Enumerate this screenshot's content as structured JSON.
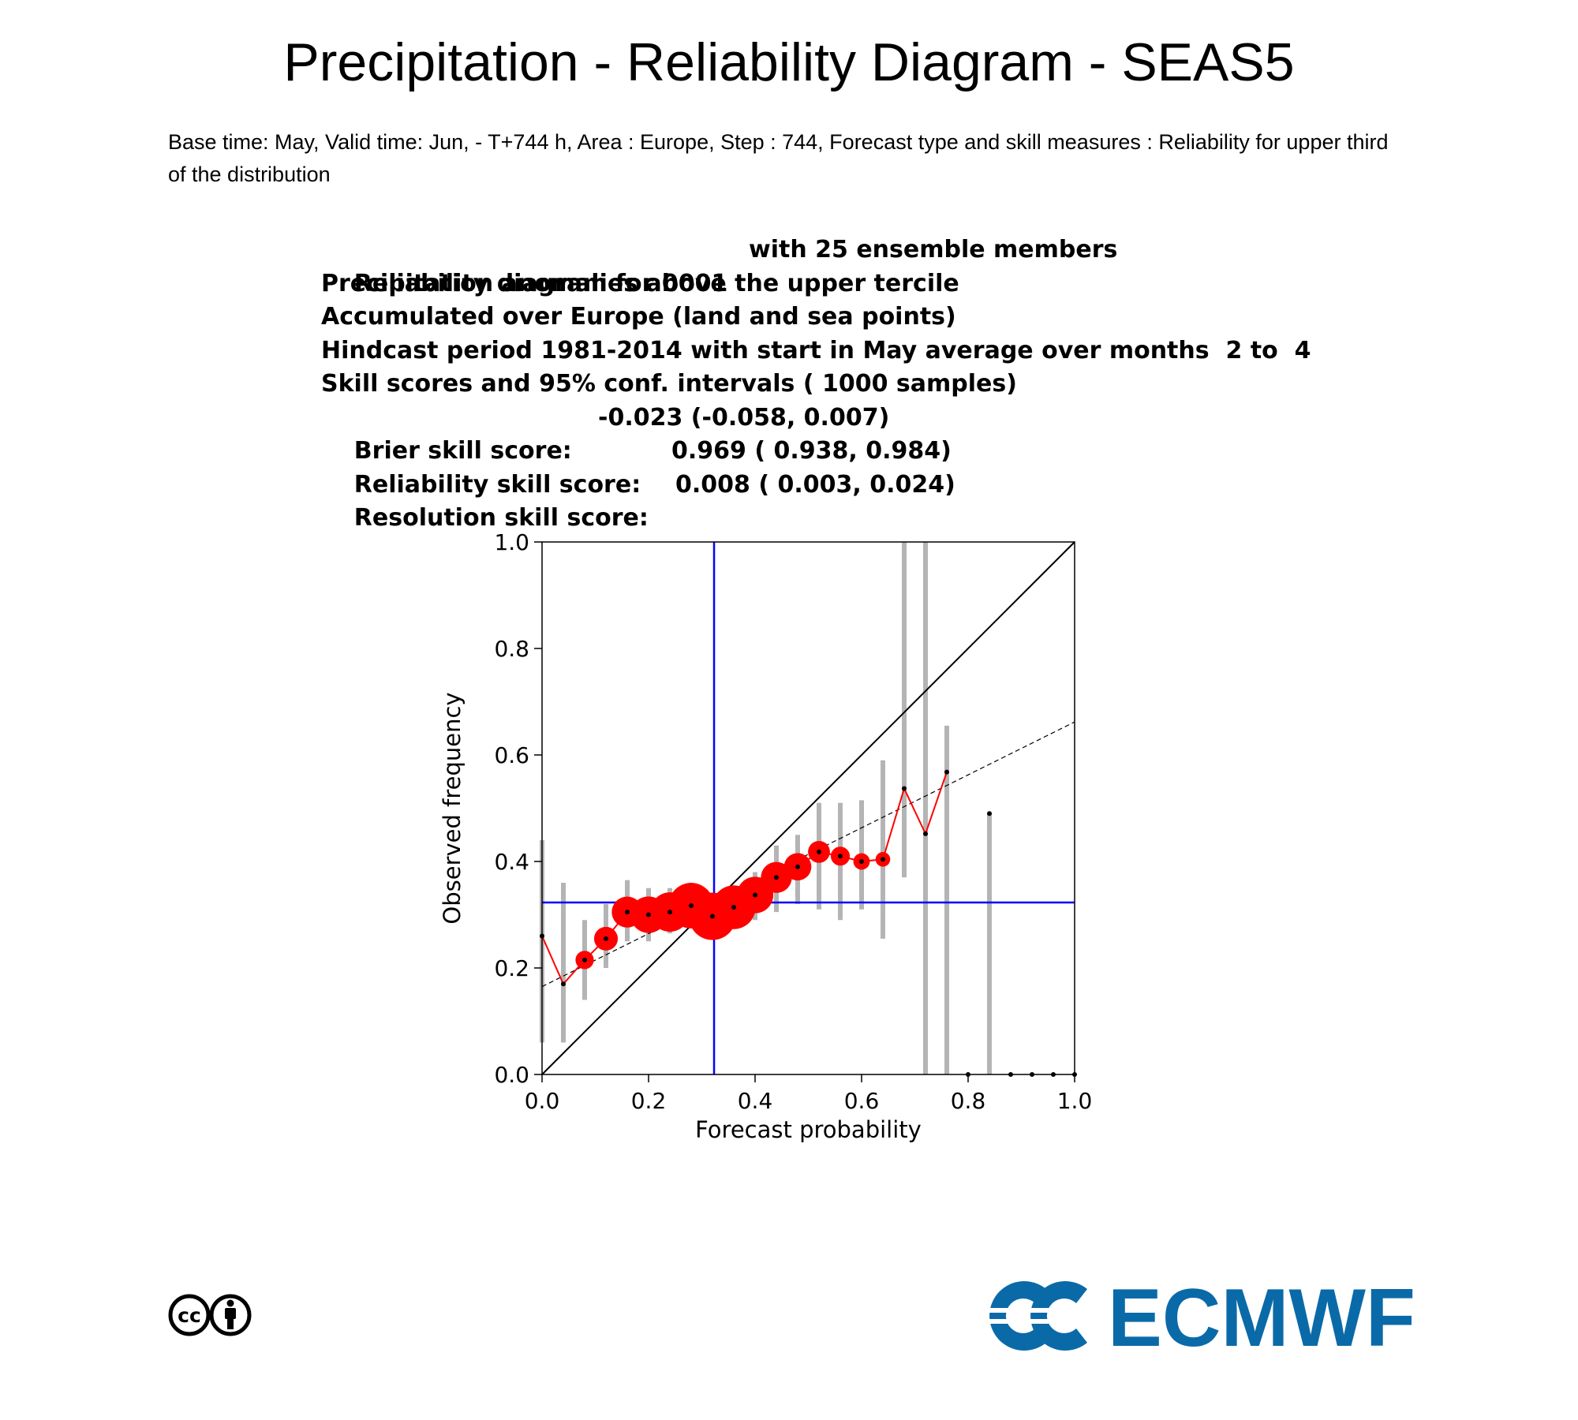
{
  "page": {
    "title": "Precipitation - Reliability Diagram - SEAS5",
    "subtitle": "Base time: May, Valid time: Jun, - T+744 h, Area : Europe, Step : 744, Forecast type and skill measures : Reliability for upper third of the distribution"
  },
  "info": {
    "line1": "Reliability diagram for 0001",
    "line1_b": "with 25 ensemble members",
    "line2": "Precipitation anomalies above the upper tercile",
    "line3": "Accumulated over Europe (land and sea points)",
    "line4": "Hindcast period 1981-2014 with start in May average over months  2 to  4",
    "line5": "Skill scores and 95% conf. intervals ( 1000 samples)",
    "brier_label": "Brier skill score:",
    "brier_value": "-0.023 (-0.058, 0.007)",
    "reliability_label": "Reliability skill score:",
    "reliability_value": "0.969 ( 0.938, 0.984)",
    "resolution_label": "Resolution skill score:",
    "resolution_value": "0.008 ( 0.003, 0.024)"
  },
  "chart_data": {
    "type": "scatter",
    "xlabel": "Forecast probability",
    "ylabel": "Observed frequency",
    "xlim": [
      0,
      1
    ],
    "ylim": [
      0,
      1
    ],
    "xticks": [
      "0.0",
      "0.2",
      "0.4",
      "0.6",
      "0.8",
      "1.0"
    ],
    "yticks": [
      "0.0",
      "0.2",
      "0.4",
      "0.6",
      "0.8",
      "1.0"
    ],
    "climatology": 0.323,
    "fit_line": {
      "y_at_0": 0.165,
      "y_at_1": 0.662
    },
    "points": [
      {
        "x": 0.0,
        "y": 0.26,
        "lo": 0.06,
        "hi": 0.44,
        "w": 0
      },
      {
        "x": 0.04,
        "y": 0.17,
        "lo": 0.06,
        "hi": 0.36,
        "w": 0
      },
      {
        "x": 0.08,
        "y": 0.215,
        "lo": 0.14,
        "hi": 0.29,
        "w": 0.2
      },
      {
        "x": 0.12,
        "y": 0.255,
        "lo": 0.2,
        "hi": 0.32,
        "w": 0.35
      },
      {
        "x": 0.16,
        "y": 0.305,
        "lo": 0.25,
        "hi": 0.365,
        "w": 0.55
      },
      {
        "x": 0.2,
        "y": 0.3,
        "lo": 0.25,
        "hi": 0.35,
        "w": 0.7
      },
      {
        "x": 0.24,
        "y": 0.305,
        "lo": 0.265,
        "hi": 0.35,
        "w": 0.78
      },
      {
        "x": 0.28,
        "y": 0.317,
        "lo": 0.28,
        "hi": 0.36,
        "w": 0.95
      },
      {
        "x": 0.32,
        "y": 0.297,
        "lo": 0.26,
        "hi": 0.335,
        "w": 1.0
      },
      {
        "x": 0.36,
        "y": 0.314,
        "lo": 0.275,
        "hi": 0.355,
        "w": 0.9
      },
      {
        "x": 0.4,
        "y": 0.337,
        "lo": 0.29,
        "hi": 0.38,
        "w": 0.7
      },
      {
        "x": 0.44,
        "y": 0.37,
        "lo": 0.305,
        "hi": 0.43,
        "w": 0.55
      },
      {
        "x": 0.48,
        "y": 0.39,
        "lo": 0.32,
        "hi": 0.45,
        "w": 0.45
      },
      {
        "x": 0.52,
        "y": 0.418,
        "lo": 0.31,
        "hi": 0.51,
        "w": 0.3
      },
      {
        "x": 0.56,
        "y": 0.41,
        "lo": 0.29,
        "hi": 0.51,
        "w": 0.22
      },
      {
        "x": 0.6,
        "y": 0.4,
        "lo": 0.31,
        "hi": 0.515,
        "w": 0.15
      },
      {
        "x": 0.64,
        "y": 0.404,
        "lo": 0.255,
        "hi": 0.59,
        "w": 0.1
      },
      {
        "x": 0.68,
        "y": 0.537,
        "lo": 0.37,
        "hi": 1.0,
        "w": 0
      },
      {
        "x": 0.72,
        "y": 0.452,
        "lo": 0.0,
        "hi": 1.0,
        "w": 0
      },
      {
        "x": 0.76,
        "y": 0.568,
        "lo": 0.0,
        "hi": 0.655,
        "w": 0
      },
      {
        "x": 0.8,
        "y": 0.0,
        "lo": null,
        "hi": null,
        "w": 0
      },
      {
        "x": 0.84,
        "y": 0.49,
        "lo": 0.0,
        "hi": 0.49,
        "w": 0
      },
      {
        "x": 0.88,
        "y": 0.0,
        "lo": null,
        "hi": null,
        "w": 0
      },
      {
        "x": 0.92,
        "y": 0.0,
        "lo": null,
        "hi": null,
        "w": 0
      },
      {
        "x": 0.96,
        "y": 0.0,
        "lo": null,
        "hi": null,
        "w": 0
      },
      {
        "x": 1.0,
        "y": 0.0,
        "lo": null,
        "hi": null,
        "w": 0
      }
    ],
    "colors": {
      "reliability_line": "#ff0000",
      "dots": "#ff0000",
      "climatology": "#0000ff",
      "error_bars": "#b4b4b4",
      "diagonal": "#000000"
    }
  },
  "logos": {
    "cc_text": "cc",
    "ecmwf_text": "ECMWF",
    "ecmwf_color": "#0a6aa8"
  }
}
